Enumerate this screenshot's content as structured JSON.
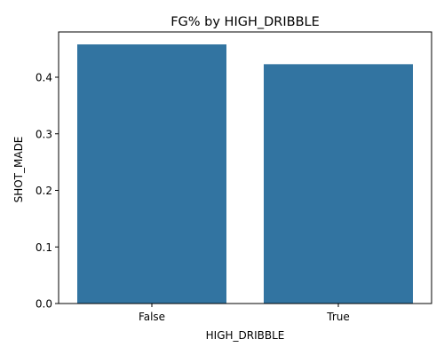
{
  "chart_data": {
    "type": "bar",
    "title": "FG% by HIGH_DRIBBLE",
    "xlabel": "HIGH_DRIBBLE",
    "ylabel": "SHOT_MADE",
    "categories": [
      "False",
      "True"
    ],
    "values": [
      0.458,
      0.423
    ],
    "ylim": [
      0,
      0.48
    ],
    "yticks": [
      0.0,
      0.1,
      0.2,
      0.3,
      0.4
    ],
    "ytick_labels": [
      "0.0",
      "0.1",
      "0.2",
      "0.3",
      "0.4"
    ],
    "bar_color": "#3274a1",
    "grid": false,
    "legend": "none"
  }
}
